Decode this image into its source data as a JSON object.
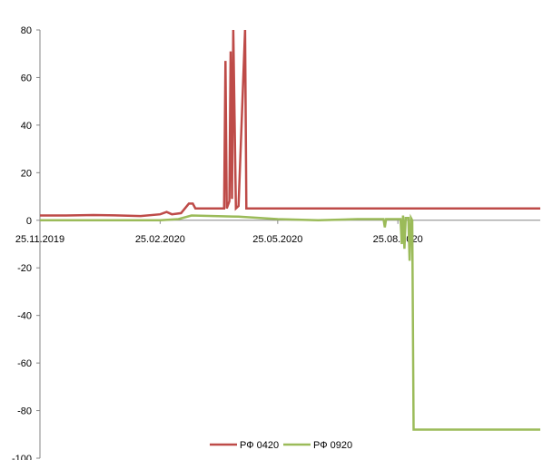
{
  "chart_data": {
    "type": "line",
    "title": "",
    "xlabel": "",
    "ylabel": "",
    "ylim": [
      -100,
      80
    ],
    "yticks": [
      80,
      60,
      40,
      20,
      0,
      -20,
      -40,
      -60,
      -80,
      -100
    ],
    "xlim": [
      "2019-11-25",
      "2020-12-12"
    ],
    "xtick_labels": [
      "25.11.2019",
      "25.02.2020",
      "25.05.2020",
      "25.08.2020"
    ],
    "xtick_dates": [
      "2019-11-25",
      "2020-02-25",
      "2020-05-25",
      "2020-08-25"
    ],
    "grid": false,
    "legend_position": "bottom-center",
    "series": [
      {
        "name": "РФ 0420",
        "color": "#be4b48",
        "points": [
          [
            "2019-11-25",
            2
          ],
          [
            "2019-12-15",
            2
          ],
          [
            "2020-01-05",
            2.2
          ],
          [
            "2020-01-25",
            2
          ],
          [
            "2020-02-10",
            1.8
          ],
          [
            "2020-02-25",
            2.5
          ],
          [
            "2020-03-01",
            3.5
          ],
          [
            "2020-03-05",
            2.5
          ],
          [
            "2020-03-12",
            3
          ],
          [
            "2020-03-18",
            7
          ],
          [
            "2020-03-21",
            7
          ],
          [
            "2020-03-23",
            5
          ],
          [
            "2020-04-14",
            5
          ],
          [
            "2020-04-15",
            67
          ],
          [
            "2020-04-16",
            5
          ],
          [
            "2020-04-18",
            8
          ],
          [
            "2020-04-19",
            71
          ],
          [
            "2020-04-20",
            9
          ],
          [
            "2020-04-21",
            80
          ],
          [
            "2020-04-23",
            5
          ],
          [
            "2020-04-25",
            6
          ],
          [
            "2020-04-30",
            80
          ],
          [
            "2020-05-01",
            5
          ],
          [
            "2020-12-12",
            5
          ]
        ]
      },
      {
        "name": "РФ 0920",
        "color": "#9bbb59",
        "points": [
          [
            "2019-11-25",
            0
          ],
          [
            "2020-01-10",
            0
          ],
          [
            "2020-02-25",
            0
          ],
          [
            "2020-03-10",
            0.5
          ],
          [
            "2020-03-20",
            2
          ],
          [
            "2020-04-25",
            1.5
          ],
          [
            "2020-05-25",
            0.5
          ],
          [
            "2020-06-25",
            0
          ],
          [
            "2020-07-25",
            0.5
          ],
          [
            "2020-08-14",
            0.5
          ],
          [
            "2020-08-15",
            -3
          ],
          [
            "2020-08-16",
            0.5
          ],
          [
            "2020-08-27",
            0.5
          ],
          [
            "2020-08-28",
            -10
          ],
          [
            "2020-08-29",
            2
          ],
          [
            "2020-08-30",
            -12
          ],
          [
            "2020-08-31",
            1
          ],
          [
            "2020-09-02",
            1
          ],
          [
            "2020-09-03",
            -17
          ],
          [
            "2020-09-04",
            1
          ],
          [
            "2020-09-05",
            0
          ],
          [
            "2020-09-06",
            -88
          ],
          [
            "2020-12-12",
            -88
          ]
        ]
      }
    ]
  }
}
